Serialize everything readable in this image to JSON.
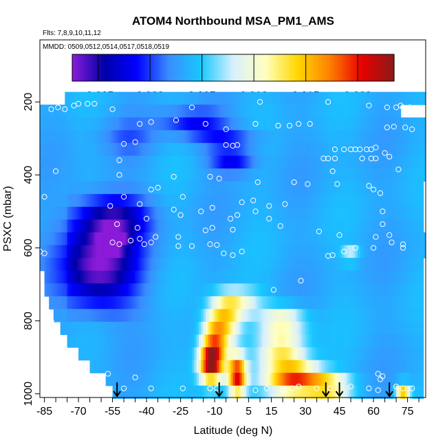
{
  "chart_data": {
    "type": "heatmap",
    "title": "ATOM4 Northbound MSA_PM1_AMS",
    "subtitles": [
      "Flts: 7,8,9,10,11,12",
      "MMDD: 0509,0512,0514,0517,0518,0519"
    ],
    "xlabel": "Latitude (deg N)",
    "ylabel": "PSXC (mbar)",
    "xlim": [
      -87,
      83
    ],
    "ylim": [
      1010,
      30
    ],
    "x_ticks": [
      -85,
      -70,
      -55,
      -40,
      -25,
      -10,
      5,
      15,
      30,
      45,
      60,
      75
    ],
    "y_ticks": [
      200,
      400,
      600,
      800,
      1000
    ],
    "colorbar": {
      "range": [
        -0.0075,
        0.0235
      ],
      "ticks": [
        -0.005,
        0.0,
        0.005,
        0.01,
        0.015,
        0.02
      ],
      "tick_labels": [
        "-0.005",
        "0.000",
        "0.005",
        "0.010",
        "0.015",
        "0.020"
      ],
      "colors": [
        "#8b1bd8",
        "#0000a8",
        "#0000ff",
        "#3a8cff",
        "#16c8ff",
        "#d8f0ff",
        "#ffffc0",
        "#ffd800",
        "#ff8000",
        "#e80000",
        "#8b1a1a"
      ]
    },
    "pressure_levels": [
      190,
      225,
      260,
      295,
      330,
      365,
      400,
      435,
      470,
      505,
      540,
      575,
      610,
      645,
      680,
      715,
      750,
      785,
      820,
      855,
      890,
      925,
      960,
      995
    ],
    "latitude_extent": {
      "190": [
        -76,
        86
      ],
      "225": [
        -88,
        72
      ],
      "260": [
        -88,
        85
      ],
      "295": [
        -88,
        85
      ],
      "330": [
        -88,
        85
      ],
      "365": [
        -88,
        83
      ],
      "400": [
        -88,
        85
      ],
      "435": [
        -88,
        82
      ],
      "470": [
        -88,
        82
      ],
      "505": [
        -88,
        82
      ],
      "540": [
        -88,
        82
      ],
      "575": [
        -88,
        85
      ],
      "610": [
        -88,
        85
      ],
      "645": [
        -88,
        82
      ],
      "680": [
        -85,
        82
      ],
      "715": [
        -85,
        82
      ],
      "750": [
        -83,
        82
      ],
      "785": [
        -81,
        82
      ],
      "820": [
        -78,
        82
      ],
      "855": [
        -75,
        82
      ],
      "890": [
        -70,
        82
      ],
      "925": [
        -65,
        82
      ],
      "960": [
        -58,
        82
      ],
      "995": [
        -55,
        82
      ]
    },
    "blobs": [
      {
        "lat": -20,
        "p": 255,
        "v": -0.0012,
        "rlat": 14,
        "rp": 35
      },
      {
        "lat": -5,
        "p": 300,
        "v": -0.0005,
        "rlat": 15,
        "rp": 30
      },
      {
        "lat": -2,
        "p": 360,
        "v": -0.0018,
        "rlat": 10,
        "rp": 35
      },
      {
        "lat": -48,
        "p": 300,
        "v": 0.0012,
        "rlat": 12,
        "rp": 50
      },
      {
        "lat": -55,
        "p": 580,
        "v": -0.0075,
        "rlat": 5,
        "rp": 25
      },
      {
        "lat": -62,
        "p": 650,
        "v": -0.005,
        "rlat": 16,
        "rp": 110
      },
      {
        "lat": -55,
        "p": 520,
        "v": -0.003,
        "rlat": 15,
        "rp": 60
      },
      {
        "lat": 0,
        "p": 950,
        "v": 0.0205,
        "rlat": 4,
        "rp": 55
      },
      {
        "lat": -10,
        "p": 870,
        "v": 0.016,
        "rlat": 6,
        "rp": 80
      },
      {
        "lat": -12,
        "p": 920,
        "v": 0.017,
        "rlat": 5,
        "rp": 50
      },
      {
        "lat": -5,
        "p": 800,
        "v": 0.012,
        "rlat": 7,
        "rp": 60
      },
      {
        "lat": 0,
        "p": 750,
        "v": 0.01,
        "rlat": 10,
        "rp": 40
      },
      {
        "lat": 25,
        "p": 960,
        "v": 0.019,
        "rlat": 12,
        "rp": 45
      },
      {
        "lat": 20,
        "p": 880,
        "v": 0.012,
        "rlat": 10,
        "rp": 50
      },
      {
        "lat": 20,
        "p": 800,
        "v": 0.011,
        "rlat": 10,
        "rp": 40
      },
      {
        "lat": 40,
        "p": 980,
        "v": 0.014,
        "rlat": 10,
        "rp": 30
      },
      {
        "lat": 73,
        "p": 990,
        "v": 0.0155,
        "rlat": 3,
        "rp": 20
      },
      {
        "lat": 50,
        "p": 620,
        "v": 0.0085,
        "rlat": 4,
        "rp": 20
      }
    ],
    "background_value": 0.0035,
    "markers": [
      {
        "label": "flight-leg-arrow",
        "lat": -53
      },
      {
        "label": "flight-leg-arrow",
        "lat": -8
      },
      {
        "label": "flight-leg-arrow",
        "lat": 39
      },
      {
        "label": "flight-leg-arrow",
        "lat": 45
      },
      {
        "label": "flight-leg-arrow",
        "lat": 67
      }
    ],
    "points": [
      [
        -82,
        220
      ],
      [
        -79,
        215
      ],
      [
        -76,
        220
      ],
      [
        -72,
        210
      ],
      [
        -70,
        205
      ],
      [
        -66,
        205
      ],
      [
        -63,
        205
      ],
      [
        -55,
        220
      ],
      [
        -20,
        215
      ],
      [
        10,
        200
      ],
      [
        40,
        200
      ],
      [
        58,
        210
      ],
      [
        66,
        215
      ],
      [
        70,
        215
      ],
      [
        72,
        210
      ],
      [
        73,
        215
      ],
      [
        76,
        215
      ],
      [
        -43,
        260
      ],
      [
        -38,
        255
      ],
      [
        -27,
        250
      ],
      [
        -14,
        260
      ],
      [
        -5,
        275
      ],
      [
        8,
        260
      ],
      [
        18,
        265
      ],
      [
        23,
        265
      ],
      [
        27,
        260
      ],
      [
        32,
        260
      ],
      [
        66,
        270
      ],
      [
        69,
        268
      ],
      [
        74,
        270
      ],
      [
        77,
        275
      ],
      [
        -50,
        315
      ],
      [
        -45,
        310
      ],
      [
        -5,
        318
      ],
      [
        -2,
        320
      ],
      [
        0,
        318
      ],
      [
        43,
        330
      ],
      [
        47,
        330
      ],
      [
        50,
        330
      ],
      [
        52,
        330
      ],
      [
        54,
        330
      ],
      [
        57,
        330
      ],
      [
        59,
        330
      ],
      [
        61,
        325
      ],
      [
        -88,
        360
      ],
      [
        -52,
        360
      ],
      [
        38,
        355
      ],
      [
        40,
        355
      ],
      [
        43,
        355
      ],
      [
        55,
        355
      ],
      [
        59,
        355
      ],
      [
        61,
        355
      ],
      [
        65,
        340
      ],
      [
        67,
        350
      ],
      [
        71,
        385
      ],
      [
        42,
        390
      ],
      [
        -52,
        400
      ],
      [
        -28,
        405
      ],
      [
        -12,
        405
      ],
      [
        -8,
        410
      ],
      [
        -80,
        390
      ],
      [
        9,
        420
      ],
      [
        25,
        420
      ],
      [
        31,
        425
      ],
      [
        44,
        425
      ],
      [
        58,
        430
      ],
      [
        60,
        440
      ],
      [
        63,
        450
      ],
      [
        -38,
        440
      ],
      [
        -35,
        435
      ],
      [
        -50,
        460
      ],
      [
        -24,
        460
      ],
      [
        -85,
        460
      ],
      [
        2,
        475
      ],
      [
        7,
        470
      ],
      [
        14,
        485
      ],
      [
        21,
        480
      ],
      [
        -56,
        485
      ],
      [
        -43,
        480
      ],
      [
        -28,
        495
      ],
      [
        -16,
        500
      ],
      [
        -11,
        490
      ],
      [
        8,
        500
      ],
      [
        -25,
        510
      ],
      [
        -40,
        520
      ],
      [
        -53,
        535
      ],
      [
        -44,
        545
      ],
      [
        -11,
        545
      ],
      [
        -14,
        552
      ],
      [
        -2,
        550
      ],
      [
        -26,
        570
      ],
      [
        -43,
        575
      ],
      [
        19,
        540
      ],
      [
        36,
        555
      ],
      [
        45,
        565
      ],
      [
        -3,
        520
      ],
      [
        0,
        510
      ],
      [
        14,
        520
      ],
      [
        64,
        500
      ],
      [
        64,
        535
      ],
      [
        61,
        570
      ],
      [
        67,
        565
      ],
      [
        68,
        585
      ],
      [
        73,
        590
      ],
      [
        73,
        600
      ],
      [
        60,
        600
      ],
      [
        52,
        600
      ],
      [
        47,
        610
      ],
      [
        42,
        620
      ],
      [
        40,
        622
      ],
      [
        -6,
        615
      ],
      [
        -2,
        620
      ],
      [
        2,
        610
      ],
      [
        -47,
        580
      ],
      [
        -41,
        590
      ],
      [
        -36,
        570
      ],
      [
        -38,
        585
      ],
      [
        -26,
        595
      ],
      [
        -20,
        595
      ],
      [
        -12,
        590
      ],
      [
        -9,
        592
      ],
      [
        -55,
        585
      ],
      [
        -52,
        590
      ],
      [
        -87,
        610
      ],
      [
        -85,
        615
      ],
      [
        28,
        690
      ],
      [
        16,
        715
      ],
      [
        -82,
        800
      ],
      [
        62,
        945
      ],
      [
        63,
        960
      ],
      [
        64,
        952
      ],
      [
        70,
        980
      ],
      [
        73,
        985
      ],
      [
        77,
        985
      ],
      [
        -57,
        945
      ],
      [
        -45,
        955
      ],
      [
        -24,
        985
      ],
      [
        -12,
        985
      ],
      [
        -9,
        985
      ],
      [
        8,
        990
      ],
      [
        13,
        985
      ],
      [
        20,
        990
      ],
      [
        24,
        985
      ],
      [
        27,
        980
      ],
      [
        35,
        985
      ],
      [
        41,
        985
      ],
      [
        50,
        980
      ],
      [
        58,
        985
      ],
      [
        62,
        990
      ],
      [
        -50,
        985
      ],
      [
        -38,
        985
      ]
    ]
  }
}
